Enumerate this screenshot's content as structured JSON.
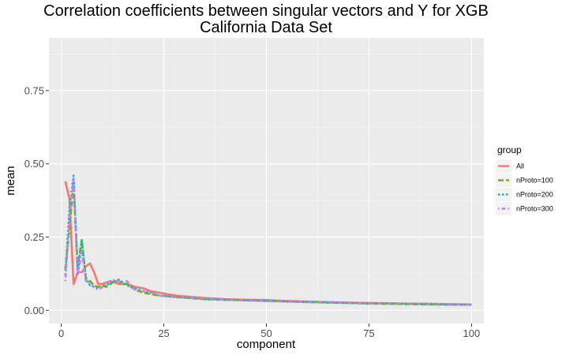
{
  "chart_data": {
    "type": "line",
    "title": "Correlation coefficients between singular vectors and Y for XGB",
    "subtitle": "California Data Set",
    "xlabel": "component",
    "ylabel": "mean",
    "xlim": [
      -3,
      103
    ],
    "ylim": [
      -0.045,
      0.93
    ],
    "xticks": [
      0,
      25,
      50,
      75,
      100
    ],
    "yticks": [
      0.0,
      0.25,
      0.5,
      0.75
    ],
    "xtick_labels": [
      "0",
      "25",
      "50",
      "75",
      "100"
    ],
    "ytick_labels": [
      "0.00",
      "0.25",
      "0.50",
      "0.75"
    ],
    "grid": true,
    "legend_placement": "right",
    "legend_title": "group",
    "series": [
      {
        "name": "All",
        "color": "#F8766D",
        "dash": "solid",
        "x": [
          1,
          2,
          3,
          4,
          5,
          6,
          7,
          8,
          9,
          10,
          12,
          14,
          16,
          18,
          20,
          22,
          24,
          26,
          28,
          30,
          35,
          40,
          45,
          50,
          55,
          60,
          65,
          70,
          75,
          80,
          85,
          90,
          95,
          100
        ],
        "y": [
          0.44,
          0.38,
          0.09,
          0.13,
          0.13,
          0.15,
          0.16,
          0.13,
          0.09,
          0.09,
          0.1,
          0.09,
          0.09,
          0.08,
          0.075,
          0.065,
          0.06,
          0.055,
          0.05,
          0.048,
          0.042,
          0.038,
          0.036,
          0.035,
          0.032,
          0.03,
          0.028,
          0.026,
          0.025,
          0.024,
          0.023,
          0.022,
          0.021,
          0.02
        ]
      },
      {
        "name": "nProto=100",
        "color": "#7CAE00",
        "dash": "longdash",
        "x": [
          1,
          2,
          3,
          4,
          5,
          6,
          7,
          8,
          9,
          10,
          11,
          12,
          13,
          14,
          15,
          16,
          18,
          20,
          22,
          24,
          26,
          28,
          30,
          35,
          40,
          45,
          50,
          55,
          60,
          65,
          70,
          75,
          80,
          85,
          90,
          95,
          100
        ],
        "y": [
          0.14,
          0.28,
          0.43,
          0.15,
          0.24,
          0.11,
          0.1,
          0.085,
          0.08,
          0.085,
          0.08,
          0.09,
          0.1,
          0.1,
          0.09,
          0.09,
          0.07,
          0.06,
          0.055,
          0.05,
          0.048,
          0.045,
          0.043,
          0.038,
          0.036,
          0.034,
          0.032,
          0.03,
          0.028,
          0.026,
          0.025,
          0.023,
          0.022,
          0.021,
          0.02,
          0.019,
          0.019
        ]
      },
      {
        "name": "nProto=200",
        "color": "#00BFC4",
        "dash": "dotted",
        "x": [
          1,
          2,
          3,
          4,
          5,
          6,
          7,
          8,
          9,
          10,
          11,
          12,
          13,
          14,
          15,
          16,
          18,
          20,
          22,
          24,
          26,
          28,
          30,
          35,
          40,
          45,
          50,
          55,
          60,
          65,
          70,
          75,
          80,
          85,
          90,
          95,
          100
        ],
        "y": [
          0.12,
          0.35,
          0.46,
          0.12,
          0.24,
          0.11,
          0.085,
          0.08,
          0.075,
          0.08,
          0.085,
          0.095,
          0.1,
          0.105,
          0.095,
          0.085,
          0.075,
          0.065,
          0.06,
          0.05,
          0.048,
          0.045,
          0.044,
          0.038,
          0.036,
          0.034,
          0.033,
          0.03,
          0.029,
          0.027,
          0.025,
          0.024,
          0.023,
          0.022,
          0.021,
          0.02,
          0.02
        ]
      },
      {
        "name": "nProto=300",
        "color": "#C77CFF",
        "dash": "dotdash",
        "x": [
          1,
          2,
          3,
          4,
          5,
          6,
          7,
          8,
          9,
          10,
          11,
          12,
          13,
          14,
          15,
          16,
          18,
          20,
          22,
          24,
          26,
          28,
          30,
          35,
          40,
          45,
          50,
          55,
          60,
          65,
          70,
          75,
          80,
          85,
          90,
          95,
          100
        ],
        "y": [
          0.1,
          0.32,
          0.45,
          0.12,
          0.2,
          0.1,
          0.09,
          0.08,
          0.07,
          0.08,
          0.09,
          0.1,
          0.105,
          0.1,
          0.095,
          0.1,
          0.07,
          0.065,
          0.06,
          0.05,
          0.047,
          0.045,
          0.044,
          0.04,
          0.036,
          0.034,
          0.032,
          0.03,
          0.028,
          0.028,
          0.026,
          0.025,
          0.024,
          0.023,
          0.022,
          0.021,
          0.02
        ]
      }
    ]
  }
}
